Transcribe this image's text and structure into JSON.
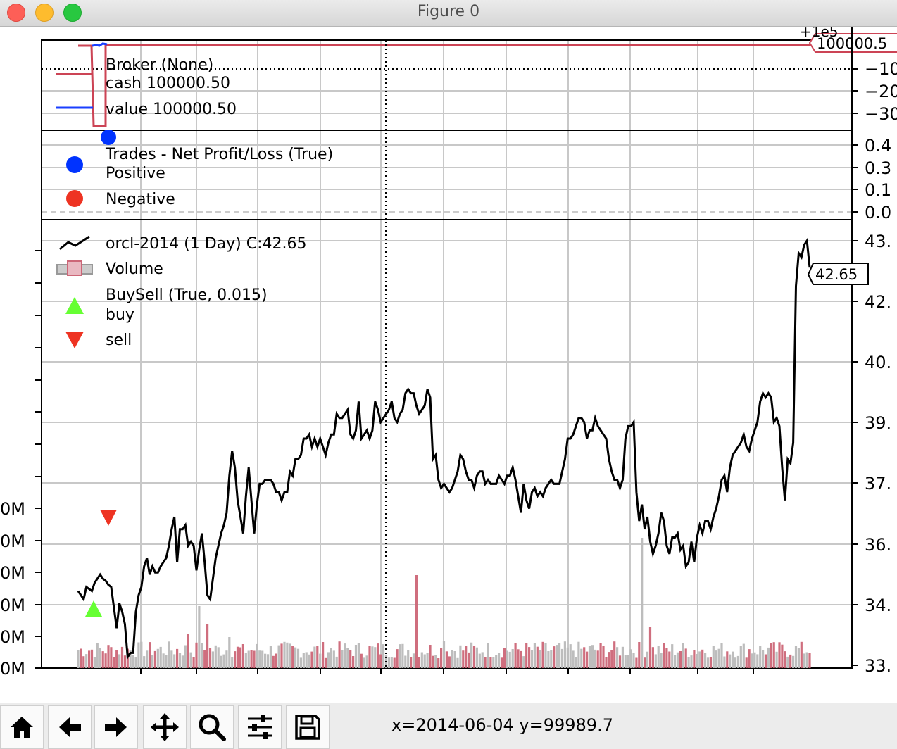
{
  "window": {
    "title": "Figure 0"
  },
  "broker": {
    "legend_title": "Broker (None)",
    "cash_label": "cash 100000.50",
    "value_label": "value 100000.50",
    "tag_value": "100000.5",
    "axis_partial_top": "+1e5",
    "yticks": [
      "−10",
      "−20",
      "−30"
    ]
  },
  "trades": {
    "legend_title": "Trades - Net Profit/Loss (True)",
    "positive_label": "Positive",
    "negative_label": "Negative",
    "yticks": [
      "0.4",
      "0.3",
      "0.1",
      "0.0"
    ]
  },
  "price": {
    "ohlc_label": "orcl-2014 (1 Day) C:42.65",
    "volume_label": "Volume",
    "buysell_label": "BuySell (True, 0.015)",
    "buy_label": "buy",
    "sell_label": "sell",
    "last_tag": "42.65",
    "yticks_right": [
      "43.",
      "42.",
      "40.",
      "39.",
      "37.",
      "36.",
      "34.",
      "33."
    ],
    "volume_ticks_left": [
      "0M",
      "0M",
      "0M",
      "0M",
      "0M",
      "0M"
    ]
  },
  "status": {
    "coords": "x=2014-06-04 y=99989.7"
  },
  "colors": {
    "cash": "#d04a5c",
    "value": "#1a3fff",
    "positive": "#0033ff",
    "negative": "#ee3322",
    "buy": "#66ff33",
    "sell": "#ee3322",
    "price": "#000000",
    "vol_up": "#bbbbbb",
    "vol_down": "#cc6677"
  },
  "toolbar": [
    "home-icon",
    "back-icon",
    "forward-icon",
    "pan-icon",
    "zoom-icon",
    "configure-icon",
    "save-icon"
  ],
  "chart_data": {
    "type": "line",
    "title": "orcl-2014 (1 Day)",
    "x_range": [
      "2014-01-02",
      "2014-12-31"
    ],
    "ylim": [
      33.0,
      43.6
    ],
    "close": [
      34.8,
      34.7,
      34.6,
      34.9,
      34.85,
      34.8,
      35.0,
      35.1,
      35.2,
      35.1,
      35.05,
      34.95,
      34.9,
      34.4,
      33.9,
      34.5,
      34.3,
      34.0,
      33.2,
      33.3,
      33.3,
      34.3,
      34.7,
      34.9,
      35.4,
      35.6,
      35.2,
      35.4,
      35.25,
      35.25,
      35.4,
      35.5,
      35.6,
      35.9,
      36.3,
      36.6,
      35.5,
      36.3,
      36.3,
      36.4,
      35.9,
      36.0,
      35.9,
      35.3,
      35.8,
      36.2,
      35.5,
      34.7,
      34.6,
      35.1,
      35.6,
      35.9,
      36.2,
      36.4,
      36.7,
      37.6,
      38.2,
      37.8,
      37.0,
      36.6,
      36.2,
      37.1,
      37.8,
      37.0,
      36.2,
      36.9,
      37.4,
      37.4,
      37.5,
      37.5,
      37.5,
      37.4,
      37.2,
      37.2,
      37.0,
      37.2,
      37.2,
      37.7,
      37.6,
      38.0,
      38.0,
      38.1,
      38.5,
      38.5,
      38.6,
      38.3,
      38.5,
      38.3,
      38.5,
      38.3,
      38.1,
      38.4,
      38.6,
      38.6,
      39.1,
      39.0,
      39.0,
      39.1,
      39.2,
      38.6,
      38.5,
      38.7,
      39.4,
      38.5,
      38.6,
      38.7,
      38.5,
      38.7,
      39.4,
      39.2,
      38.9,
      39.0,
      39.1,
      39.2,
      39.4,
      39.0,
      38.9,
      39.1,
      39.2,
      39.6,
      39.7,
      39.6,
      39.6,
      39.3,
      39.1,
      39.2,
      39.3,
      39.7,
      39.5,
      38.0,
      38.1,
      37.5,
      37.3,
      37.4,
      37.3,
      37.2,
      37.3,
      37.5,
      37.7,
      38.1,
      38.0,
      37.7,
      37.5,
      37.5,
      37.3,
      37.6,
      37.7,
      37.7,
      37.4,
      37.5,
      37.4,
      37.4,
      37.4,
      37.6,
      37.5,
      37.4,
      37.6,
      37.6,
      37.8,
      37.5,
      37.1,
      36.7,
      37.4,
      37.0,
      36.8,
      37.2,
      37.3,
      37.1,
      37.2,
      37.1,
      37.3,
      37.4,
      37.5,
      37.4,
      37.4,
      37.4,
      37.7,
      38.0,
      38.5,
      38.5,
      38.6,
      38.8,
      39.0,
      39.0,
      38.9,
      38.5,
      38.7,
      38.7,
      39.0,
      38.8,
      38.7,
      38.6,
      38.5,
      38.0,
      37.7,
      37.5,
      37.5,
      37.3,
      37.5,
      38.5,
      38.8,
      38.8,
      38.9,
      37.2,
      36.5,
      36.9,
      36.3,
      36.6,
      36.0,
      35.7,
      35.9,
      36.2,
      36.7,
      36.5,
      35.9,
      35.7,
      36.1,
      36.1,
      36.2,
      35.8,
      35.9,
      35.4,
      35.5,
      36.0,
      35.5,
      36.1,
      36.4,
      36.2,
      36.5,
      36.5,
      36.3,
      36.6,
      36.8,
      37.1,
      37.5,
      37.6,
      37.2,
      37.8,
      38.1,
      38.2,
      38.3,
      38.4,
      38.6,
      38.3,
      38.2,
      38.5,
      38.7,
      38.9,
      39.4,
      39.6,
      39.5,
      39.6,
      39.5,
      38.9,
      39.0,
      38.8,
      37.8,
      37.0,
      38.0,
      37.9,
      38.4,
      42.2,
      43.0,
      42.9,
      43.2,
      43.3,
      42.65
    ]
  }
}
